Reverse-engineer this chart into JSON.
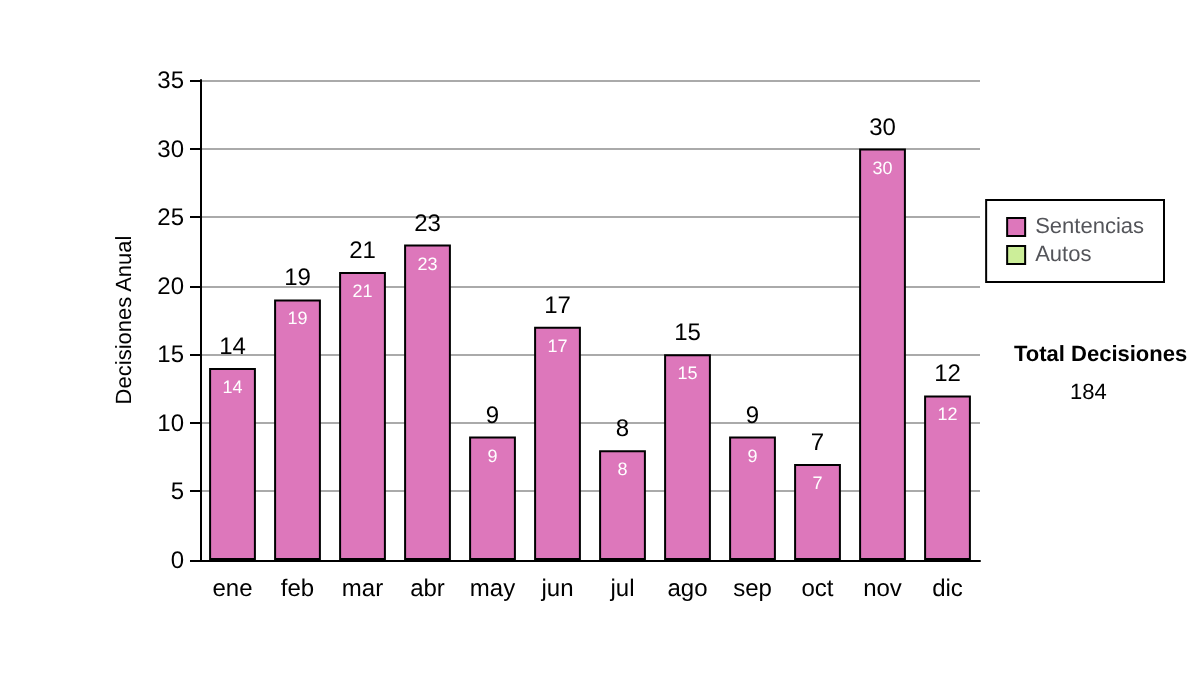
{
  "chart_data": {
    "type": "bar",
    "stacked": true,
    "ylabel": "Decisiones Anual",
    "categories": [
      "ene",
      "feb",
      "mar",
      "abr",
      "may",
      "jun",
      "jul",
      "ago",
      "sep",
      "oct",
      "nov",
      "dic"
    ],
    "series": [
      {
        "name": "Sentencias",
        "color": "#dd77bb",
        "values": [
          14,
          19,
          21,
          23,
          9,
          17,
          8,
          15,
          9,
          7,
          30,
          12
        ],
        "value_labels": [
          "14",
          "19",
          "21",
          "23",
          "9",
          "17",
          "8",
          "15",
          "9",
          "7",
          "30",
          "12"
        ]
      },
      {
        "name": "Autos",
        "color": "#ccee99",
        "values": [
          0,
          0,
          0,
          0,
          0,
          0,
          0,
          0,
          0,
          0,
          0,
          0
        ]
      }
    ],
    "totals": [
      "14",
      "19",
      "21",
      "23",
      "9",
      "17",
      "8",
      "15",
      "9",
      "7",
      "30",
      "12"
    ],
    "ylim": [
      0,
      35
    ],
    "yticks": [
      0,
      5,
      10,
      15,
      20,
      25,
      30,
      35
    ],
    "grid": "y",
    "legend": "right",
    "annotations": [
      "Total Decisiones",
      "184"
    ]
  }
}
